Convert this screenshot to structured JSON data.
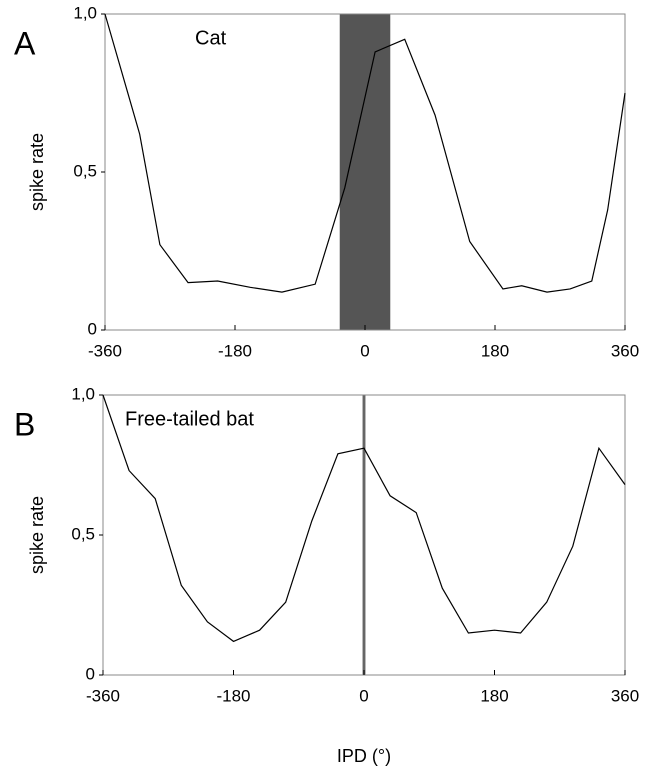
{
  "chart_data": [
    {
      "type": "line",
      "panel_label": "A",
      "title": "Cat",
      "ylabel": "spike rate",
      "x": [
        -360,
        -312,
        -284,
        -245,
        -204,
        -159,
        -115,
        -69,
        -28,
        14,
        55,
        97,
        145,
        191,
        217,
        252,
        284,
        314,
        336,
        360
      ],
      "values": [
        1.0,
        0.62,
        0.27,
        0.15,
        0.155,
        0.135,
        0.12,
        0.145,
        0.45,
        0.88,
        0.92,
        0.68,
        0.28,
        0.13,
        0.14,
        0.12,
        0.13,
        0.155,
        0.38,
        0.75
      ],
      "color": "#000000",
      "band": [
        -35,
        35
      ],
      "band_color": "#555555",
      "xlim": [
        -360,
        360
      ],
      "ylim": [
        0,
        1
      ],
      "xticks": [
        -360,
        -180,
        0,
        180,
        360
      ],
      "yticks": [
        0,
        {
          "value": 0.5,
          "label": "0,5"
        },
        {
          "value": 1,
          "label": "1,0"
        }
      ]
    },
    {
      "type": "line",
      "panel_label": "B",
      "title": "Free-tailed bat",
      "ylabel": "spike rate",
      "xlabel": "IPD (°)",
      "x": [
        -360,
        -324,
        -288,
        -252,
        -216,
        -180,
        -144,
        -108,
        -72,
        -36,
        0,
        36,
        72,
        108,
        144,
        180,
        216,
        252,
        288,
        324,
        360
      ],
      "values": [
        1.0,
        0.73,
        0.63,
        0.32,
        0.19,
        0.12,
        0.16,
        0.26,
        0.55,
        0.79,
        0.81,
        0.64,
        0.58,
        0.31,
        0.15,
        0.16,
        0.15,
        0.26,
        0.46,
        0.81,
        0.68
      ],
      "color": "#000000",
      "band": [
        -2,
        2
      ],
      "band_color": "#666666",
      "xlim": [
        -360,
        360
      ],
      "ylim": [
        0,
        1
      ],
      "xticks": [
        -360,
        -180,
        0,
        180,
        360
      ],
      "yticks": [
        0,
        {
          "value": 0.5,
          "label": "0,5"
        },
        {
          "value": 1,
          "label": "1,0"
        }
      ]
    }
  ]
}
